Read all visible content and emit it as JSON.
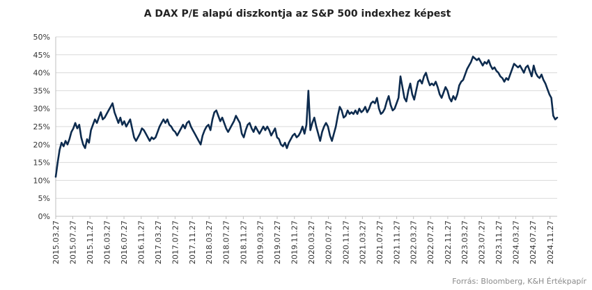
{
  "chart_data": {
    "type": "line",
    "title": "A DAX P/E alapú diszkontja az S&P 500 indexhez  képest",
    "source": "Forrás: Bloomberg,  K&H Értékpapír",
    "ylim": [
      0,
      50
    ],
    "yticks": [
      "0%",
      "5%",
      "10%",
      "15%",
      "20%",
      "25%",
      "30%",
      "35%",
      "40%",
      "45%",
      "50%"
    ],
    "xticks": [
      "2015.03.27",
      "2015.07.27",
      "2015.11.27",
      "2016.03.27",
      "2016.07.27",
      "2016.11.27",
      "2017.03.27",
      "2017.07.27",
      "2017.11.27",
      "2018.03.27",
      "2018.07.27",
      "2018.11.27",
      "2019.03.27",
      "2019.07.27",
      "2019.11.27",
      "2020.03.27",
      "2020.07.27",
      "2020.11.27",
      "2021.03.27",
      "2021.07.27",
      "2021.11.27",
      "2022.03.27",
      "2022.07.27",
      "2022.11.27",
      "2023.03.27",
      "2023.07.27",
      "2023.11.27",
      "2024.03.27",
      "2024.07.27",
      "2024.11.27"
    ],
    "grid": true,
    "legend": "none",
    "color": "#0d2b4e",
    "series": [
      {
        "name": "",
        "points": [
          [
            "2015-03-27",
            11.0
          ],
          [
            "2015-04-10",
            15.0
          ],
          [
            "2015-04-24",
            18.5
          ],
          [
            "2015-05-08",
            20.5
          ],
          [
            "2015-05-22",
            19.5
          ],
          [
            "2015-06-05",
            21.0
          ],
          [
            "2015-06-19",
            20.0
          ],
          [
            "2015-07-03",
            21.5
          ],
          [
            "2015-07-17",
            23.5
          ],
          [
            "2015-07-31",
            24.5
          ],
          [
            "2015-08-14",
            26.0
          ],
          [
            "2015-08-28",
            24.5
          ],
          [
            "2015-09-11",
            25.5
          ],
          [
            "2015-09-25",
            22.0
          ],
          [
            "2015-10-09",
            20.0
          ],
          [
            "2015-10-23",
            19.0
          ],
          [
            "2015-11-06",
            21.5
          ],
          [
            "2015-11-20",
            20.5
          ],
          [
            "2015-12-04",
            24.0
          ],
          [
            "2015-12-18",
            25.5
          ],
          [
            "2016-01-01",
            27.0
          ],
          [
            "2016-01-15",
            26.0
          ],
          [
            "2016-01-29",
            27.5
          ],
          [
            "2016-02-12",
            29.0
          ],
          [
            "2016-02-26",
            27.0
          ],
          [
            "2016-03-11",
            27.5
          ],
          [
            "2016-03-25",
            28.5
          ],
          [
            "2016-04-08",
            29.5
          ],
          [
            "2016-04-22",
            30.5
          ],
          [
            "2016-05-06",
            31.5
          ],
          [
            "2016-05-20",
            29.0
          ],
          [
            "2016-06-03",
            27.5
          ],
          [
            "2016-06-17",
            26.0
          ],
          [
            "2016-07-01",
            27.5
          ],
          [
            "2016-07-15",
            25.5
          ],
          [
            "2016-07-29",
            26.5
          ],
          [
            "2016-08-12",
            25.0
          ],
          [
            "2016-08-26",
            26.0
          ],
          [
            "2016-09-09",
            27.0
          ],
          [
            "2016-09-23",
            24.5
          ],
          [
            "2016-10-07",
            22.0
          ],
          [
            "2016-10-21",
            21.0
          ],
          [
            "2016-11-04",
            22.0
          ],
          [
            "2016-11-18",
            23.0
          ],
          [
            "2016-12-02",
            24.5
          ],
          [
            "2016-12-16",
            24.0
          ],
          [
            "2016-12-30",
            23.0
          ],
          [
            "2017-01-13",
            22.0
          ],
          [
            "2017-01-27",
            21.0
          ],
          [
            "2017-02-10",
            22.0
          ],
          [
            "2017-02-24",
            21.5
          ],
          [
            "2017-03-10",
            22.0
          ],
          [
            "2017-03-24",
            23.5
          ],
          [
            "2017-04-07",
            25.0
          ],
          [
            "2017-04-21",
            26.0
          ],
          [
            "2017-05-05",
            27.0
          ],
          [
            "2017-05-19",
            26.0
          ],
          [
            "2017-06-02",
            27.0
          ],
          [
            "2017-06-16",
            25.5
          ],
          [
            "2017-06-30",
            25.0
          ],
          [
            "2017-07-14",
            24.0
          ],
          [
            "2017-07-28",
            23.5
          ],
          [
            "2017-08-11",
            22.5
          ],
          [
            "2017-08-25",
            23.5
          ],
          [
            "2017-09-08",
            24.5
          ],
          [
            "2017-09-22",
            25.5
          ],
          [
            "2017-10-06",
            24.5
          ],
          [
            "2017-10-20",
            26.0
          ],
          [
            "2017-11-03",
            26.5
          ],
          [
            "2017-11-17",
            25.0
          ],
          [
            "2017-12-01",
            24.0
          ],
          [
            "2017-12-15",
            23.0
          ],
          [
            "2017-12-29",
            22.0
          ],
          [
            "2018-01-12",
            21.0
          ],
          [
            "2018-01-26",
            20.0
          ],
          [
            "2018-02-09",
            22.5
          ],
          [
            "2018-02-23",
            24.0
          ],
          [
            "2018-03-09",
            25.0
          ],
          [
            "2018-03-23",
            25.5
          ],
          [
            "2018-04-06",
            24.0
          ],
          [
            "2018-04-20",
            27.0
          ],
          [
            "2018-05-04",
            29.0
          ],
          [
            "2018-05-18",
            29.5
          ],
          [
            "2018-06-01",
            28.0
          ],
          [
            "2018-06-15",
            26.5
          ],
          [
            "2018-06-29",
            27.5
          ],
          [
            "2018-07-13",
            26.0
          ],
          [
            "2018-07-27",
            24.5
          ],
          [
            "2018-08-10",
            23.5
          ],
          [
            "2018-08-24",
            24.5
          ],
          [
            "2018-09-07",
            25.5
          ],
          [
            "2018-09-21",
            26.5
          ],
          [
            "2018-10-05",
            28.0
          ],
          [
            "2018-10-19",
            27.0
          ],
          [
            "2018-11-02",
            26.0
          ],
          [
            "2018-11-16",
            23.0
          ],
          [
            "2018-11-30",
            22.0
          ],
          [
            "2018-12-14",
            24.0
          ],
          [
            "2018-12-28",
            25.5
          ],
          [
            "2019-01-11",
            26.0
          ],
          [
            "2019-01-25",
            24.5
          ],
          [
            "2019-02-08",
            23.5
          ],
          [
            "2019-02-22",
            25.0
          ],
          [
            "2019-03-08",
            24.0
          ],
          [
            "2019-03-22",
            23.0
          ],
          [
            "2019-04-05",
            24.0
          ],
          [
            "2019-04-19",
            25.0
          ],
          [
            "2019-05-03",
            24.0
          ],
          [
            "2019-05-17",
            25.0
          ],
          [
            "2019-05-31",
            24.0
          ],
          [
            "2019-06-14",
            22.5
          ],
          [
            "2019-06-28",
            23.5
          ],
          [
            "2019-07-12",
            24.5
          ],
          [
            "2019-07-26",
            22.0
          ],
          [
            "2019-08-09",
            21.5
          ],
          [
            "2019-08-23",
            20.0
          ],
          [
            "2019-09-06",
            19.5
          ],
          [
            "2019-09-20",
            20.5
          ],
          [
            "2019-10-04",
            19.0
          ],
          [
            "2019-10-18",
            20.5
          ],
          [
            "2019-11-01",
            21.5
          ],
          [
            "2019-11-15",
            22.5
          ],
          [
            "2019-11-29",
            23.0
          ],
          [
            "2019-12-13",
            22.0
          ],
          [
            "2019-12-27",
            22.5
          ],
          [
            "2020-01-10",
            23.5
          ],
          [
            "2020-01-24",
            25.0
          ],
          [
            "2020-02-07",
            23.0
          ],
          [
            "2020-02-21",
            25.5
          ],
          [
            "2020-03-06",
            35.0
          ],
          [
            "2020-03-20",
            24.0
          ],
          [
            "2020-04-03",
            26.0
          ],
          [
            "2020-04-17",
            27.5
          ],
          [
            "2020-05-01",
            25.0
          ],
          [
            "2020-05-15",
            23.0
          ],
          [
            "2020-05-29",
            21.0
          ],
          [
            "2020-06-12",
            23.5
          ],
          [
            "2020-06-26",
            25.0
          ],
          [
            "2020-07-10",
            26.0
          ],
          [
            "2020-07-24",
            25.0
          ],
          [
            "2020-08-07",
            22.5
          ],
          [
            "2020-08-21",
            21.0
          ],
          [
            "2020-09-04",
            23.0
          ],
          [
            "2020-09-18",
            25.0
          ],
          [
            "2020-10-02",
            28.0
          ],
          [
            "2020-10-16",
            30.5
          ],
          [
            "2020-10-30",
            29.5
          ],
          [
            "2020-11-13",
            27.5
          ],
          [
            "2020-11-27",
            28.0
          ],
          [
            "2020-12-11",
            29.5
          ],
          [
            "2020-12-25",
            28.5
          ],
          [
            "2021-01-08",
            29.0
          ],
          [
            "2021-01-22",
            28.5
          ],
          [
            "2021-02-05",
            29.5
          ],
          [
            "2021-02-19",
            28.5
          ],
          [
            "2021-03-05",
            30.0
          ],
          [
            "2021-03-19",
            29.0
          ],
          [
            "2021-04-02",
            29.5
          ],
          [
            "2021-04-16",
            30.5
          ],
          [
            "2021-04-30",
            29.0
          ],
          [
            "2021-05-14",
            30.0
          ],
          [
            "2021-05-28",
            31.5
          ],
          [
            "2021-06-11",
            32.0
          ],
          [
            "2021-06-25",
            31.5
          ],
          [
            "2021-07-09",
            33.0
          ],
          [
            "2021-07-23",
            30.0
          ],
          [
            "2021-08-06",
            28.5
          ],
          [
            "2021-08-20",
            29.0
          ],
          [
            "2021-09-03",
            30.0
          ],
          [
            "2021-09-17",
            32.0
          ],
          [
            "2021-10-01",
            33.5
          ],
          [
            "2021-10-15",
            31.0
          ],
          [
            "2021-10-29",
            29.5
          ],
          [
            "2021-11-12",
            30.0
          ],
          [
            "2021-11-26",
            31.5
          ],
          [
            "2021-12-10",
            33.0
          ],
          [
            "2021-12-24",
            39.0
          ],
          [
            "2022-01-07",
            36.0
          ],
          [
            "2022-01-21",
            33.0
          ],
          [
            "2022-02-04",
            32.0
          ],
          [
            "2022-02-18",
            35.0
          ],
          [
            "2022-03-04",
            37.0
          ],
          [
            "2022-03-18",
            34.0
          ],
          [
            "2022-04-01",
            32.5
          ],
          [
            "2022-04-15",
            35.0
          ],
          [
            "2022-04-29",
            37.5
          ],
          [
            "2022-05-13",
            38.0
          ],
          [
            "2022-05-27",
            37.0
          ],
          [
            "2022-06-10",
            39.0
          ],
          [
            "2022-06-24",
            40.0
          ],
          [
            "2022-07-08",
            38.0
          ],
          [
            "2022-07-22",
            36.5
          ],
          [
            "2022-08-05",
            37.0
          ],
          [
            "2022-08-19",
            36.5
          ],
          [
            "2022-09-02",
            37.5
          ],
          [
            "2022-09-16",
            36.0
          ],
          [
            "2022-09-30",
            34.0
          ],
          [
            "2022-10-14",
            33.0
          ],
          [
            "2022-10-28",
            34.5
          ],
          [
            "2022-11-11",
            36.0
          ],
          [
            "2022-11-25",
            35.0
          ],
          [
            "2022-12-09",
            33.0
          ],
          [
            "2022-12-23",
            32.0
          ],
          [
            "2023-01-06",
            33.5
          ],
          [
            "2023-01-20",
            32.5
          ],
          [
            "2023-02-03",
            34.0
          ],
          [
            "2023-02-17",
            36.5
          ],
          [
            "2023-03-03",
            37.5
          ],
          [
            "2023-03-17",
            38.0
          ],
          [
            "2023-03-31",
            39.5
          ],
          [
            "2023-04-14",
            41.0
          ],
          [
            "2023-04-28",
            42.0
          ],
          [
            "2023-05-12",
            43.0
          ],
          [
            "2023-05-26",
            44.5
          ],
          [
            "2023-06-09",
            44.0
          ],
          [
            "2023-06-23",
            43.5
          ],
          [
            "2023-07-07",
            44.0
          ],
          [
            "2023-07-21",
            43.0
          ],
          [
            "2023-08-04",
            42.0
          ],
          [
            "2023-08-18",
            43.0
          ],
          [
            "2023-09-01",
            42.5
          ],
          [
            "2023-09-15",
            43.5
          ],
          [
            "2023-09-29",
            42.0
          ],
          [
            "2023-10-13",
            41.0
          ],
          [
            "2023-10-27",
            41.5
          ],
          [
            "2023-11-10",
            40.5
          ],
          [
            "2023-11-24",
            40.0
          ],
          [
            "2023-12-08",
            39.0
          ],
          [
            "2023-12-22",
            38.5
          ],
          [
            "2024-01-05",
            37.5
          ],
          [
            "2024-01-19",
            38.5
          ],
          [
            "2024-02-02",
            38.0
          ],
          [
            "2024-02-16",
            39.5
          ],
          [
            "2024-03-01",
            41.0
          ],
          [
            "2024-03-15",
            42.5
          ],
          [
            "2024-03-29",
            42.0
          ],
          [
            "2024-04-12",
            41.5
          ],
          [
            "2024-04-26",
            42.0
          ],
          [
            "2024-05-10",
            41.0
          ],
          [
            "2024-05-24",
            40.0
          ],
          [
            "2024-06-07",
            41.5
          ],
          [
            "2024-06-21",
            42.0
          ],
          [
            "2024-07-05",
            40.5
          ],
          [
            "2024-07-19",
            39.0
          ],
          [
            "2024-08-02",
            42.0
          ],
          [
            "2024-08-16",
            40.0
          ],
          [
            "2024-08-30",
            39.0
          ],
          [
            "2024-09-13",
            38.5
          ],
          [
            "2024-09-27",
            39.5
          ],
          [
            "2024-10-11",
            38.0
          ],
          [
            "2024-10-25",
            37.0
          ],
          [
            "2024-11-08",
            35.5
          ],
          [
            "2024-11-22",
            34.0
          ],
          [
            "2024-12-06",
            33.0
          ],
          [
            "2024-12-20",
            28.0
          ],
          [
            "2025-01-03",
            27.0
          ],
          [
            "2025-01-17",
            27.5
          ]
        ]
      }
    ]
  }
}
